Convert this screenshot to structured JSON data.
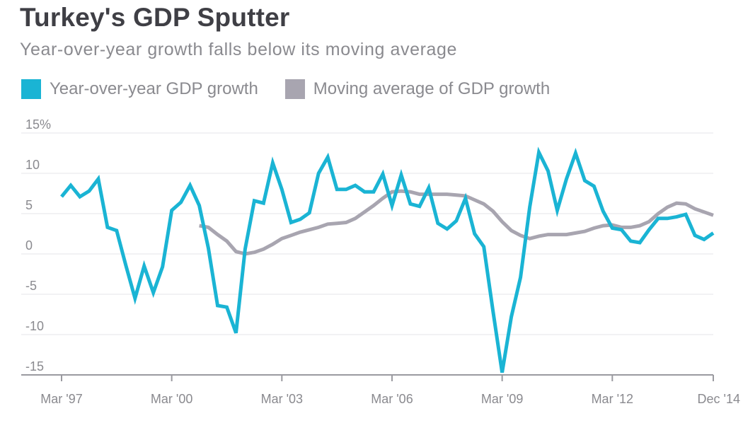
{
  "title": "Turkey's GDP Sputter",
  "subtitle": "Year-over-year growth falls below its moving average",
  "legend": [
    {
      "label": "Year-over-year GDP growth",
      "color": "#1ab4d4"
    },
    {
      "label": "Moving average of GDP growth",
      "color": "#a8a5b0"
    }
  ],
  "chart_data": {
    "type": "line",
    "x_axis": {
      "type": "date",
      "range": [
        "1997-03",
        "2014-12"
      ],
      "tick_labels": [
        "Mar '97",
        "Mar '00",
        "Mar '03",
        "Mar '06",
        "Mar '09",
        "Mar '12",
        "Dec '14"
      ],
      "tick_dates": [
        "1997-03",
        "2000-03",
        "2003-03",
        "2006-03",
        "2009-03",
        "2012-03",
        "2014-12"
      ]
    },
    "y_axis": {
      "range": [
        -15,
        15
      ],
      "ticks": [
        15,
        10,
        5,
        0,
        -5,
        -10,
        -15
      ],
      "tick_labels": [
        "15%",
        "10",
        "5",
        "0",
        "-5",
        "-10",
        "-15"
      ]
    },
    "grid": "horizontal",
    "legend_position": "top-left",
    "series": [
      {
        "name": "Year-over-year GDP growth",
        "color": "#1ab4d4",
        "x": [
          "1997-03",
          "1997-06",
          "1997-09",
          "1997-12",
          "1998-03",
          "1998-06",
          "1998-09",
          "1998-12",
          "1999-03",
          "1999-06",
          "1999-09",
          "1999-12",
          "2000-03",
          "2000-06",
          "2000-09",
          "2000-12",
          "2001-03",
          "2001-06",
          "2001-09",
          "2001-12",
          "2002-03",
          "2002-06",
          "2002-09",
          "2002-12",
          "2003-03",
          "2003-06",
          "2003-09",
          "2003-12",
          "2004-03",
          "2004-06",
          "2004-09",
          "2004-12",
          "2005-03",
          "2005-06",
          "2005-09",
          "2005-12",
          "2006-03",
          "2006-06",
          "2006-09",
          "2006-12",
          "2007-03",
          "2007-06",
          "2007-09",
          "2007-12",
          "2008-03",
          "2008-06",
          "2008-09",
          "2008-12",
          "2009-03",
          "2009-06",
          "2009-09",
          "2009-12",
          "2010-03",
          "2010-06",
          "2010-09",
          "2010-12",
          "2011-03",
          "2011-06",
          "2011-09",
          "2011-12",
          "2012-03",
          "2012-06",
          "2012-09",
          "2012-12",
          "2013-03",
          "2013-06",
          "2013-09",
          "2013-12",
          "2014-03",
          "2014-06",
          "2014-09",
          "2014-12"
        ],
        "y": [
          7.1,
          8.5,
          7.1,
          7.8,
          9.3,
          3.3,
          2.9,
          -1.4,
          -5.5,
          -1.5,
          -4.8,
          -1.6,
          5.4,
          6.4,
          8.5,
          6.0,
          0.7,
          -6.4,
          -6.6,
          -9.8,
          0.6,
          6.6,
          6.3,
          11.3,
          8.0,
          3.9,
          4.3,
          5.1,
          10.0,
          12.0,
          8.0,
          8.0,
          8.5,
          7.7,
          7.7,
          9.9,
          6.0,
          9.8,
          6.2,
          5.9,
          8.2,
          3.8,
          3.1,
          4.1,
          6.9,
          2.5,
          0.9,
          -7.1,
          -14.7,
          -7.8,
          -2.9,
          5.8,
          12.6,
          10.3,
          5.4,
          9.3,
          12.5,
          9.1,
          8.4,
          5.3,
          3.2,
          3.0,
          1.6,
          1.4,
          3.0,
          4.4,
          4.4,
          4.6,
          4.9,
          2.3,
          1.8,
          2.6
        ]
      },
      {
        "name": "Moving average of GDP growth",
        "color": "#a8a5b0",
        "x": [
          "2000-12",
          "2001-03",
          "2001-06",
          "2001-09",
          "2001-12",
          "2002-03",
          "2002-06",
          "2002-09",
          "2002-12",
          "2003-03",
          "2003-06",
          "2003-09",
          "2003-12",
          "2004-03",
          "2004-06",
          "2004-09",
          "2004-12",
          "2005-03",
          "2005-06",
          "2005-09",
          "2005-12",
          "2006-03",
          "2006-06",
          "2006-09",
          "2006-12",
          "2007-03",
          "2007-06",
          "2007-09",
          "2007-12",
          "2008-03",
          "2008-06",
          "2008-09",
          "2008-12",
          "2009-03",
          "2009-06",
          "2009-09",
          "2009-12",
          "2010-03",
          "2010-06",
          "2010-09",
          "2010-12",
          "2011-03",
          "2011-06",
          "2011-09",
          "2011-12",
          "2012-03",
          "2012-06",
          "2012-09",
          "2012-12",
          "2013-03",
          "2013-06",
          "2013-09",
          "2013-12",
          "2014-03",
          "2014-06",
          "2014-09",
          "2014-12"
        ],
        "y": [
          3.5,
          3.3,
          2.4,
          1.6,
          0.3,
          0.0,
          0.2,
          0.6,
          1.2,
          1.9,
          2.3,
          2.7,
          3.0,
          3.3,
          3.7,
          3.8,
          3.9,
          4.4,
          5.2,
          6.0,
          6.9,
          7.7,
          7.8,
          7.7,
          7.4,
          7.4,
          7.4,
          7.4,
          7.3,
          7.2,
          6.7,
          6.2,
          5.3,
          4.0,
          2.9,
          2.3,
          1.9,
          2.2,
          2.4,
          2.4,
          2.4,
          2.6,
          2.8,
          3.2,
          3.5,
          3.6,
          3.3,
          3.3,
          3.5,
          4.0,
          5.0,
          5.8,
          6.3,
          6.2,
          5.6,
          5.2,
          4.8
        ]
      }
    ]
  }
}
